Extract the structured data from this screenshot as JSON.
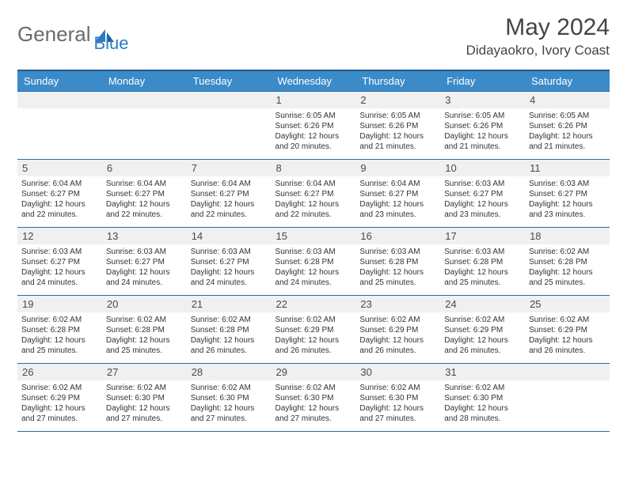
{
  "logo": {
    "text1": "General",
    "text2": "Blue",
    "icon_color": "#2e7cc2"
  },
  "header": {
    "title": "May 2024",
    "location": "Didayaokro, Ivory Coast"
  },
  "colors": {
    "header_bg": "#3b8bc9",
    "header_border_top": "#205c8a",
    "cell_border": "#2e6a9c",
    "daynum_bg": "#eef0f2",
    "text": "#333333"
  },
  "day_headers": [
    "Sunday",
    "Monday",
    "Tuesday",
    "Wednesday",
    "Thursday",
    "Friday",
    "Saturday"
  ],
  "weeks": [
    [
      {
        "n": "",
        "lines": []
      },
      {
        "n": "",
        "lines": []
      },
      {
        "n": "",
        "lines": []
      },
      {
        "n": "1",
        "lines": [
          "Sunrise: 6:05 AM",
          "Sunset: 6:26 PM",
          "Daylight: 12 hours and 20 minutes."
        ]
      },
      {
        "n": "2",
        "lines": [
          "Sunrise: 6:05 AM",
          "Sunset: 6:26 PM",
          "Daylight: 12 hours and 21 minutes."
        ]
      },
      {
        "n": "3",
        "lines": [
          "Sunrise: 6:05 AM",
          "Sunset: 6:26 PM",
          "Daylight: 12 hours and 21 minutes."
        ]
      },
      {
        "n": "4",
        "lines": [
          "Sunrise: 6:05 AM",
          "Sunset: 6:26 PM",
          "Daylight: 12 hours and 21 minutes."
        ]
      }
    ],
    [
      {
        "n": "5",
        "lines": [
          "Sunrise: 6:04 AM",
          "Sunset: 6:27 PM",
          "Daylight: 12 hours and 22 minutes."
        ]
      },
      {
        "n": "6",
        "lines": [
          "Sunrise: 6:04 AM",
          "Sunset: 6:27 PM",
          "Daylight: 12 hours and 22 minutes."
        ]
      },
      {
        "n": "7",
        "lines": [
          "Sunrise: 6:04 AM",
          "Sunset: 6:27 PM",
          "Daylight: 12 hours and 22 minutes."
        ]
      },
      {
        "n": "8",
        "lines": [
          "Sunrise: 6:04 AM",
          "Sunset: 6:27 PM",
          "Daylight: 12 hours and 22 minutes."
        ]
      },
      {
        "n": "9",
        "lines": [
          "Sunrise: 6:04 AM",
          "Sunset: 6:27 PM",
          "Daylight: 12 hours and 23 minutes."
        ]
      },
      {
        "n": "10",
        "lines": [
          "Sunrise: 6:03 AM",
          "Sunset: 6:27 PM",
          "Daylight: 12 hours and 23 minutes."
        ]
      },
      {
        "n": "11",
        "lines": [
          "Sunrise: 6:03 AM",
          "Sunset: 6:27 PM",
          "Daylight: 12 hours and 23 minutes."
        ]
      }
    ],
    [
      {
        "n": "12",
        "lines": [
          "Sunrise: 6:03 AM",
          "Sunset: 6:27 PM",
          "Daylight: 12 hours and 24 minutes."
        ]
      },
      {
        "n": "13",
        "lines": [
          "Sunrise: 6:03 AM",
          "Sunset: 6:27 PM",
          "Daylight: 12 hours and 24 minutes."
        ]
      },
      {
        "n": "14",
        "lines": [
          "Sunrise: 6:03 AM",
          "Sunset: 6:27 PM",
          "Daylight: 12 hours and 24 minutes."
        ]
      },
      {
        "n": "15",
        "lines": [
          "Sunrise: 6:03 AM",
          "Sunset: 6:28 PM",
          "Daylight: 12 hours and 24 minutes."
        ]
      },
      {
        "n": "16",
        "lines": [
          "Sunrise: 6:03 AM",
          "Sunset: 6:28 PM",
          "Daylight: 12 hours and 25 minutes."
        ]
      },
      {
        "n": "17",
        "lines": [
          "Sunrise: 6:03 AM",
          "Sunset: 6:28 PM",
          "Daylight: 12 hours and 25 minutes."
        ]
      },
      {
        "n": "18",
        "lines": [
          "Sunrise: 6:02 AM",
          "Sunset: 6:28 PM",
          "Daylight: 12 hours and 25 minutes."
        ]
      }
    ],
    [
      {
        "n": "19",
        "lines": [
          "Sunrise: 6:02 AM",
          "Sunset: 6:28 PM",
          "Daylight: 12 hours and 25 minutes."
        ]
      },
      {
        "n": "20",
        "lines": [
          "Sunrise: 6:02 AM",
          "Sunset: 6:28 PM",
          "Daylight: 12 hours and 25 minutes."
        ]
      },
      {
        "n": "21",
        "lines": [
          "Sunrise: 6:02 AM",
          "Sunset: 6:28 PM",
          "Daylight: 12 hours and 26 minutes."
        ]
      },
      {
        "n": "22",
        "lines": [
          "Sunrise: 6:02 AM",
          "Sunset: 6:29 PM",
          "Daylight: 12 hours and 26 minutes."
        ]
      },
      {
        "n": "23",
        "lines": [
          "Sunrise: 6:02 AM",
          "Sunset: 6:29 PM",
          "Daylight: 12 hours and 26 minutes."
        ]
      },
      {
        "n": "24",
        "lines": [
          "Sunrise: 6:02 AM",
          "Sunset: 6:29 PM",
          "Daylight: 12 hours and 26 minutes."
        ]
      },
      {
        "n": "25",
        "lines": [
          "Sunrise: 6:02 AM",
          "Sunset: 6:29 PM",
          "Daylight: 12 hours and 26 minutes."
        ]
      }
    ],
    [
      {
        "n": "26",
        "lines": [
          "Sunrise: 6:02 AM",
          "Sunset: 6:29 PM",
          "Daylight: 12 hours and 27 minutes."
        ]
      },
      {
        "n": "27",
        "lines": [
          "Sunrise: 6:02 AM",
          "Sunset: 6:30 PM",
          "Daylight: 12 hours and 27 minutes."
        ]
      },
      {
        "n": "28",
        "lines": [
          "Sunrise: 6:02 AM",
          "Sunset: 6:30 PM",
          "Daylight: 12 hours and 27 minutes."
        ]
      },
      {
        "n": "29",
        "lines": [
          "Sunrise: 6:02 AM",
          "Sunset: 6:30 PM",
          "Daylight: 12 hours and 27 minutes."
        ]
      },
      {
        "n": "30",
        "lines": [
          "Sunrise: 6:02 AM",
          "Sunset: 6:30 PM",
          "Daylight: 12 hours and 27 minutes."
        ]
      },
      {
        "n": "31",
        "lines": [
          "Sunrise: 6:02 AM",
          "Sunset: 6:30 PM",
          "Daylight: 12 hours and 28 minutes."
        ]
      },
      {
        "n": "",
        "lines": []
      }
    ]
  ]
}
